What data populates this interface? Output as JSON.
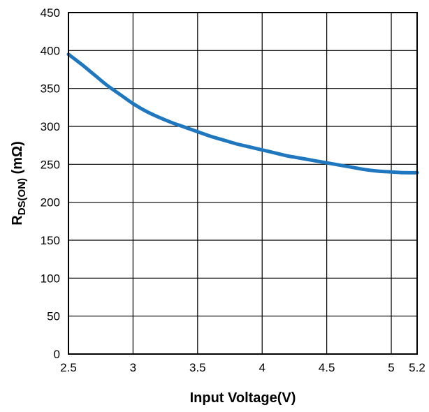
{
  "chart_data": {
    "type": "line",
    "title": "",
    "xlabel": "Input Voltage(V)",
    "ylabel": {
      "main": "R",
      "sub": "DS(ON)",
      "unit": " (mΩ)"
    },
    "xlim": [
      2.5,
      5.2
    ],
    "ylim": [
      0,
      450
    ],
    "x_ticks": [
      2.5,
      3,
      3.5,
      4,
      4.5,
      5,
      5.2
    ],
    "x_tick_labels": [
      "2.5",
      "3",
      "3.5",
      "4",
      "4.5",
      "5",
      "5.2"
    ],
    "y_ticks": [
      0,
      50,
      100,
      150,
      200,
      250,
      300,
      350,
      400,
      450
    ],
    "y_tick_labels": [
      "0",
      "50",
      "100",
      "150",
      "200",
      "250",
      "300",
      "350",
      "400",
      "450"
    ],
    "grid": true,
    "series": [
      {
        "color": "#1f77bf",
        "x": [
          2.5,
          2.6,
          2.7,
          2.8,
          2.9,
          3.0,
          3.1,
          3.2,
          3.3,
          3.4,
          3.5,
          3.6,
          3.7,
          3.8,
          3.9,
          4.0,
          4.1,
          4.2,
          4.3,
          4.4,
          4.5,
          4.6,
          4.7,
          4.8,
          4.9,
          5.0,
          5.1,
          5.2
        ],
        "y": [
          395,
          382,
          368,
          354,
          342,
          330,
          320,
          312,
          305,
          299,
          293,
          287,
          282,
          277,
          273,
          269,
          265,
          261,
          258,
          255,
          252,
          249,
          246,
          243,
          241,
          240,
          239,
          239
        ]
      }
    ]
  }
}
